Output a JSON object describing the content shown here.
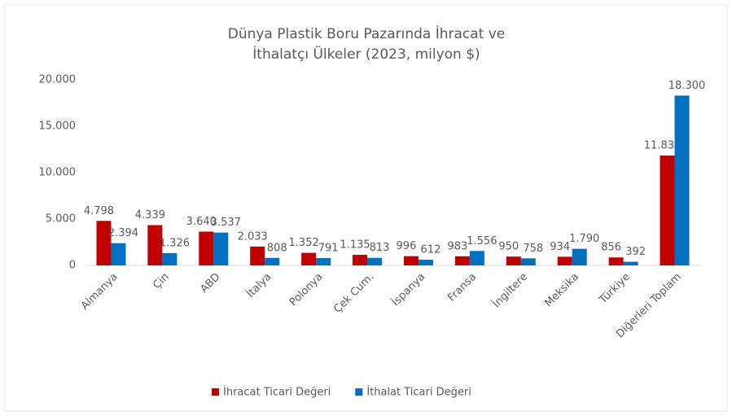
{
  "chart_data": {
    "type": "bar",
    "title": "Dünya Plastik Boru Pazarında İhracat ve İthalatçı Ülkeler (2023, milyon $)",
    "categories": [
      "Almanya",
      "Çin",
      "ABD",
      "İtalya",
      "Polonya",
      "Çek Cum.",
      "İspanya",
      "Fransa",
      "İngiltere",
      "Meksika",
      "Türkiye",
      "Diğerleri Toplam"
    ],
    "series": [
      {
        "name": "İhracat Ticari Değeri",
        "color": "#c00000",
        "values": [
          4798,
          4339,
          3640,
          2033,
          1352,
          1135,
          996,
          983,
          950,
          934,
          856,
          11837
        ],
        "value_labels": [
          "4.798",
          "4.339",
          "3.640",
          "2.033",
          "1.352",
          "1.135",
          "996",
          "983",
          "950",
          "934",
          "856",
          "11.837"
        ]
      },
      {
        "name": "İthalat Ticari Değeri",
        "color": "#0070c0",
        "values": [
          2394,
          1326,
          3537,
          808,
          791,
          813,
          612,
          1556,
          758,
          1790,
          392,
          18300
        ],
        "value_labels": [
          "2.394",
          "1.326",
          "3.537",
          "808",
          "791",
          "813",
          "612",
          "1.556",
          "758",
          "1.790",
          "392",
          "18.300"
        ]
      }
    ],
    "ylim": [
      0,
      20000
    ],
    "yticks": [
      0,
      {
        "value": 5000,
        "label": "5.000"
      },
      {
        "value": 10000,
        "label": "10.000"
      },
      {
        "value": 15000,
        "label": "15.000"
      },
      {
        "value": 20000,
        "label": "20.000"
      }
    ],
    "grid": false,
    "legend": "bottom"
  }
}
